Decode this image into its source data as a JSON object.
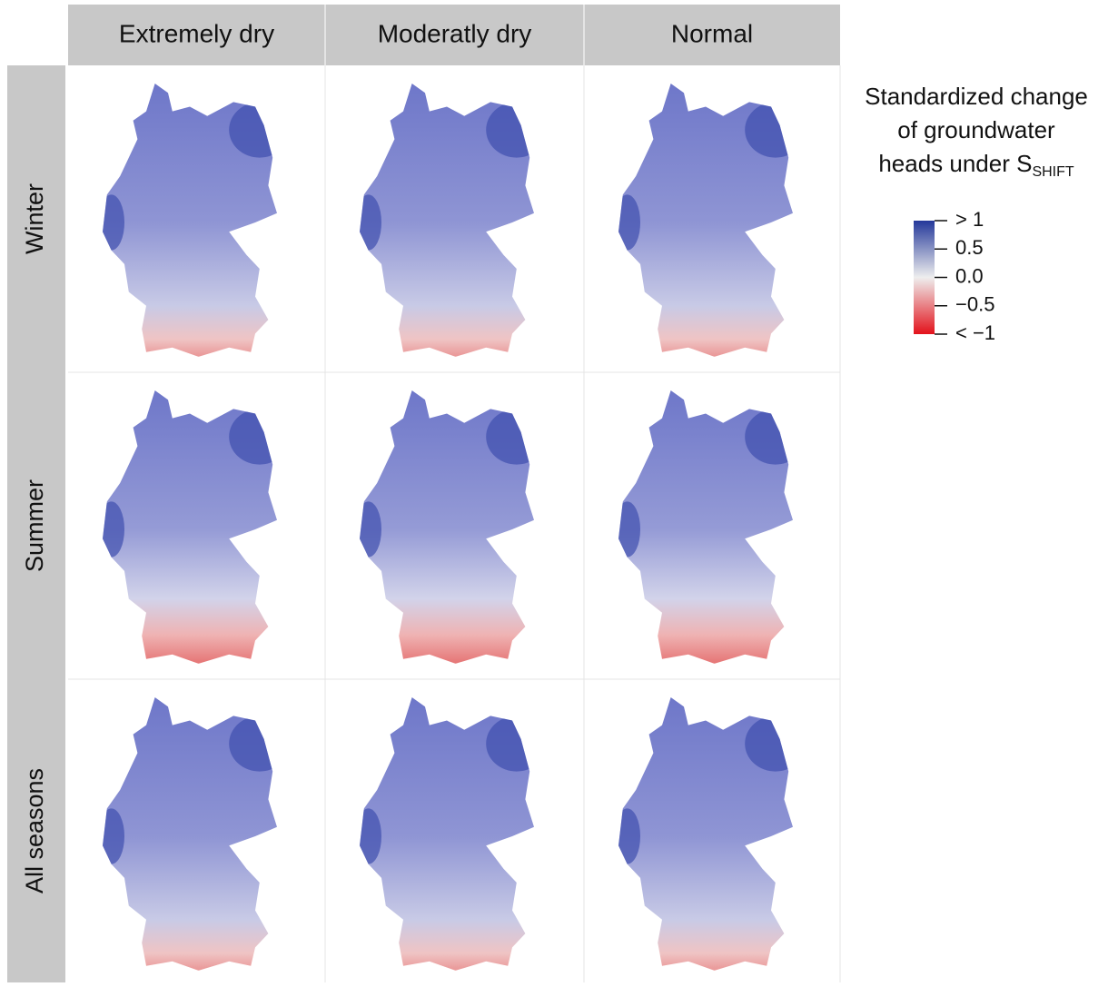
{
  "header": {
    "columns": [
      "Extremely dry",
      "Moderatly dry",
      "Normal"
    ],
    "rows": [
      "Winter",
      "Summer",
      "All seasons"
    ]
  },
  "legend": {
    "title_lines": [
      "Standardized change",
      "of groundwater",
      "heads under S"
    ],
    "title_subscript": "SHIFT",
    "lim": [
      -1,
      1
    ],
    "ticks": [
      {
        "value": 1,
        "label": "> 1"
      },
      0.5,
      {
        "value": 0,
        "label": "0.0"
      },
      {
        "value": -0.5,
        "label": "−0.5"
      },
      {
        "value": -1,
        "label": "< −1"
      }
    ],
    "colors": [
      "#24389a",
      "#eeeeee",
      "#e3121b"
    ]
  }
}
